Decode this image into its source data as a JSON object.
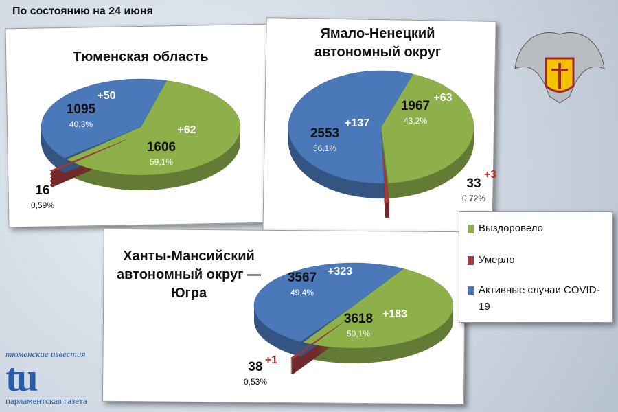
{
  "header": {
    "date": "По состоянию на 24 июня"
  },
  "logo": {
    "top": "тюменские известия",
    "mark": "tu",
    "bottom": "парламентская газета"
  },
  "chart_data": [
    {
      "type": "pie",
      "title": "Тюменская область",
      "categories": [
        "Выздоровело",
        "Умерло",
        "Активные случаи COVID-19"
      ],
      "colors": [
        "#8db04a",
        "#a33a3a",
        "#4a78b8"
      ],
      "values": [
        1606,
        16,
        1095
      ],
      "percents": [
        59.1,
        0.59,
        40.3
      ],
      "percent_labels": [
        "59,1%",
        "0,59%",
        "40,3%"
      ],
      "increases": [
        62,
        null,
        50
      ],
      "increase_labels": [
        "+62",
        null,
        "+50"
      ]
    },
    {
      "type": "pie",
      "title": "Ямало-Ненецкий автономный округ",
      "categories": [
        "Выздоровело",
        "Умерло",
        "Активные случаи COVID-19"
      ],
      "colors": [
        "#8db04a",
        "#a33a3a",
        "#4a78b8"
      ],
      "values": [
        1967,
        33,
        2553
      ],
      "percents": [
        43.2,
        0.72,
        56.1
      ],
      "percent_labels": [
        "43,2%",
        "0,72%",
        "56,1%"
      ],
      "increases": [
        63,
        3,
        137
      ],
      "increase_labels": [
        "+63",
        "+3",
        "+137"
      ]
    },
    {
      "type": "pie",
      "title": "Ханты-Мансийский автономный округ — Югра",
      "categories": [
        "Выздоровело",
        "Умерло",
        "Активные случаи COVID-19"
      ],
      "colors": [
        "#8db04a",
        "#a33a3a",
        "#4a78b8"
      ],
      "values": [
        3618,
        38,
        3567
      ],
      "percents": [
        50.1,
        0.53,
        49.4
      ],
      "percent_labels": [
        "50,1%",
        "0,53%",
        "49,4%"
      ],
      "increases": [
        183,
        1,
        323
      ],
      "increase_labels": [
        "+183",
        "+1",
        "+323"
      ]
    }
  ]
}
